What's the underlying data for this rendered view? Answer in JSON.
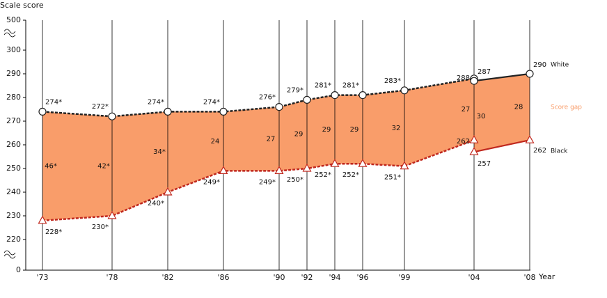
{
  "chart_data": {
    "type": "line",
    "y_label": "Scale score",
    "x_label": "Year",
    "ylim": [
      0,
      500
    ],
    "yticks": [
      0,
      220,
      230,
      240,
      250,
      260,
      270,
      280,
      290,
      300,
      500
    ],
    "xlim": [
      1973,
      2008
    ],
    "xticks": [
      {
        "value": 1973,
        "label": "'73"
      },
      {
        "value": 1978,
        "label": "'78"
      },
      {
        "value": 1982,
        "label": "'82"
      },
      {
        "value": 1986,
        "label": "'86"
      },
      {
        "value": 1990,
        "label": "'90"
      },
      {
        "value": 1992,
        "label": "'92"
      },
      {
        "value": 1994,
        "label": "'94"
      },
      {
        "value": 1996,
        "label": "'96"
      },
      {
        "value": 1999,
        "label": "'99"
      },
      {
        "value": 2004,
        "label": "'04"
      },
      {
        "value": 2008,
        "label": "'08"
      }
    ],
    "grid": true,
    "series": [
      {
        "color": "#222222",
        "marker": "circle",
        "dashed": true,
        "x": [
          1973,
          1978,
          1982,
          1986,
          1990,
          1992,
          1994,
          1996,
          1999,
          2004
        ],
        "values": [
          274,
          272,
          274,
          274,
          276,
          279,
          281,
          281,
          283,
          288
        ],
        "value_labels": [
          "274*",
          "272*",
          "274*",
          "274*",
          "276*",
          "279*",
          "281*",
          "281*",
          "283*",
          "288"
        ]
      },
      {
        "name": "White",
        "color": "#222222",
        "marker": "circle",
        "dashed": false,
        "x": [
          2004,
          2008
        ],
        "values": [
          287,
          290
        ]
      },
      {
        "color": "#c0281e",
        "marker": "triangle",
        "dashed": true,
        "x": [
          1973,
          1978,
          1982,
          1986,
          1990,
          1992,
          1994,
          1996,
          1999,
          2004
        ],
        "values": [
          228,
          230,
          240,
          249,
          249,
          250,
          252,
          252,
          251,
          262
        ],
        "value_labels": [
          "228*",
          "230*",
          "240*",
          "249*",
          "249*",
          "250*",
          "252*",
          "252*",
          "251*",
          "262"
        ]
      },
      {
        "name": "Black",
        "color": "#c0281e",
        "marker": "triangle",
        "dashed": false,
        "x": [
          2004,
          2008
        ],
        "values": [
          257,
          262
        ]
      }
    ],
    "gap_color": "#f99d6a",
    "gaps": [
      {
        "x": [
          1973,
          1978,
          1982,
          1986,
          1990,
          1992,
          1994,
          1996,
          1999,
          2004
        ],
        "values": [
          46,
          42,
          34,
          24,
          27,
          29,
          29,
          29,
          32,
          27
        ],
        "value_labels": [
          "46*",
          "42*",
          "34*",
          "24",
          "27",
          "29",
          "29",
          "29",
          "32",
          "27"
        ]
      },
      {
        "name": "Score gap",
        "x": [
          2004,
          2008
        ],
        "values": [
          30,
          28
        ]
      }
    ]
  }
}
